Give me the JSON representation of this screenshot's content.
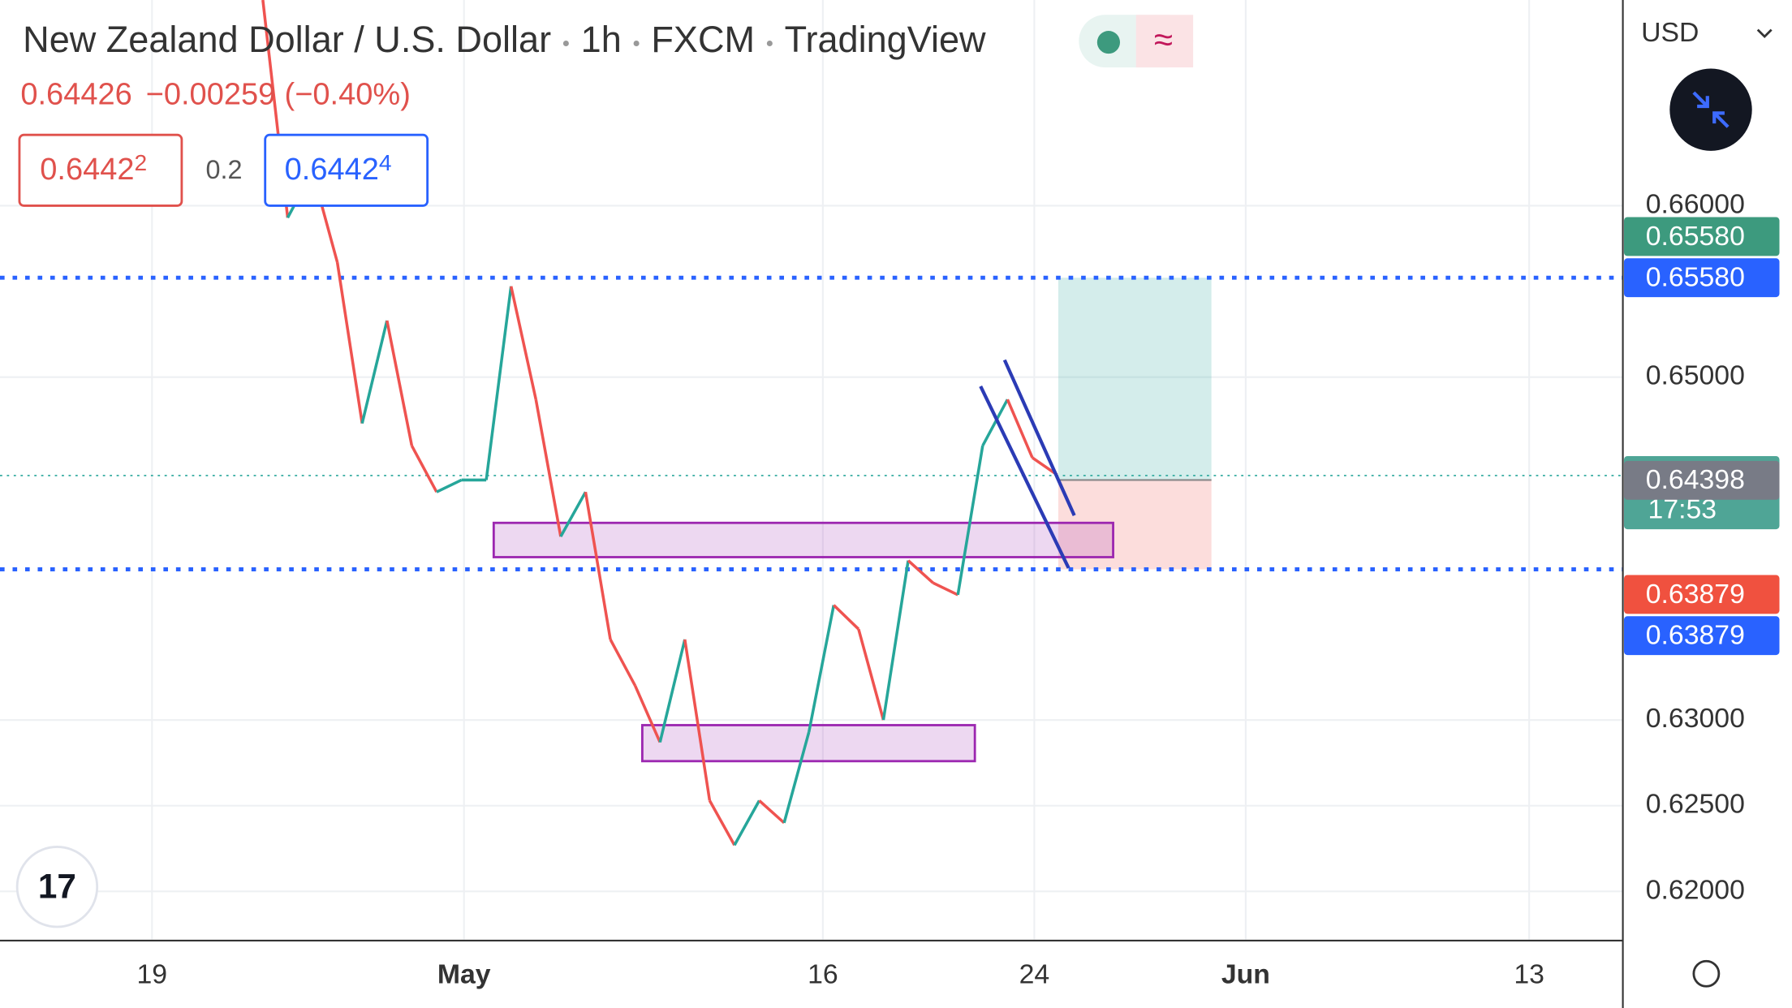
{
  "header": {
    "title": "New Zealand Dollar / U.S. Dollar",
    "interval": "1h",
    "source": "FXCM",
    "platform": "TradingView",
    "last": "0.64426",
    "change": "−0.00259",
    "change_pct": "(−0.40%)",
    "sell": "0.6442",
    "sell_pip": "2",
    "spread": "0.2",
    "buy": "0.6442",
    "buy_pip": "4",
    "currency": "USD"
  },
  "chart_data": {
    "type": "line",
    "values": [
      0.672,
      0.6593,
      0.662,
      0.6567,
      0.6473,
      0.6533,
      0.646,
      0.6433,
      0.644,
      0.644,
      0.6553,
      0.6487,
      0.6407,
      0.6433,
      0.6347,
      0.632,
      0.6287,
      0.6347,
      0.6253,
      0.6227,
      0.6253,
      0.624,
      0.6293,
      0.6367,
      0.6353,
      0.63,
      0.6393,
      0.638,
      0.6373,
      0.646,
      0.6487,
      0.6453,
      0.6443
    ],
    "colors": {
      "up": "#26a69a",
      "down": "#ef5350"
    },
    "x_labels": [
      "19",
      "May",
      "16",
      "24",
      "Jun",
      "13"
    ],
    "ylim": [
      0.6172,
      0.672
    ],
    "yticks": [
      {
        "value": 0.62,
        "label": "0.62000"
      },
      {
        "value": 0.625,
        "label": "0.62500"
      },
      {
        "value": 0.63,
        "label": "0.63000"
      },
      {
        "value": 0.65,
        "label": "0.65000"
      },
      {
        "value": 0.66,
        "label": "0.66000"
      }
    ],
    "grid": true,
    "levels": [
      {
        "value": 0.6558,
        "color": "#2962ff"
      },
      {
        "value": 0.63879,
        "color": "#2962ff"
      },
      {
        "value": 0.64426,
        "color": "#26a69a"
      }
    ],
    "zones": [
      {
        "top": 0.6415,
        "bottom": 0.6395
      },
      {
        "top": 0.6297,
        "bottom": 0.6276
      }
    ],
    "position": {
      "target": 0.6558,
      "entry": 0.644,
      "stop": 0.63879
    },
    "price_labels": [
      {
        "value": 0.6558,
        "label": "0.65580",
        "color": "#3d9a7e"
      },
      {
        "value": 0.6558,
        "label": "0.65580",
        "color": "#2962ff"
      },
      {
        "value": 0.64426,
        "label": "0.64426",
        "sub": "17:53",
        "color": "#4fa596"
      },
      {
        "value": 0.64398,
        "label": "0.64398",
        "color": "#787b86"
      },
      {
        "value": 0.63879,
        "label": "0.63879",
        "color": "#f0513f"
      },
      {
        "value": 0.63879,
        "label": "0.63879",
        "color": "#2962ff"
      }
    ]
  }
}
